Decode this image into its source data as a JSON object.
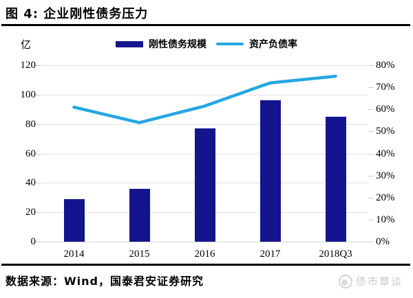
{
  "figure": {
    "title": "图 4: 企业刚性债务压力"
  },
  "chart_data": {
    "type": "combo",
    "categories": [
      "2014",
      "2015",
      "2016",
      "2017",
      "2018Q3"
    ],
    "series": [
      {
        "name": "刚性债务规模",
        "type": "bar",
        "axis": "left",
        "color": "#14148E",
        "values": [
          29,
          36,
          77,
          96,
          85
        ]
      },
      {
        "name": "资产负债率",
        "type": "line",
        "axis": "right",
        "color": "#24A7E2",
        "values": [
          61,
          54,
          61.5,
          72,
          75
        ]
      }
    ],
    "left_axis": {
      "unit": "亿",
      "min": 0,
      "max": 120,
      "step": 20,
      "tick_labels": [
        "120",
        "100",
        "80",
        "60",
        "40",
        "20",
        "0"
      ]
    },
    "right_axis": {
      "min": 0,
      "max": 80,
      "step": 10,
      "suffix": "%",
      "tick_labels": [
        "80%",
        "70%",
        "60%",
        "50%",
        "40%",
        "30%",
        "20%",
        "10%",
        "0%"
      ]
    },
    "grid": true,
    "legend_position": "top"
  },
  "footer": {
    "source": "数据来源：Wind，国泰君安证券研究"
  },
  "watermark": {
    "text": "债市覃谈"
  },
  "colors": {
    "bar": "#14148E",
    "line": "#24A7E2",
    "grid": "#e3e3e3"
  }
}
